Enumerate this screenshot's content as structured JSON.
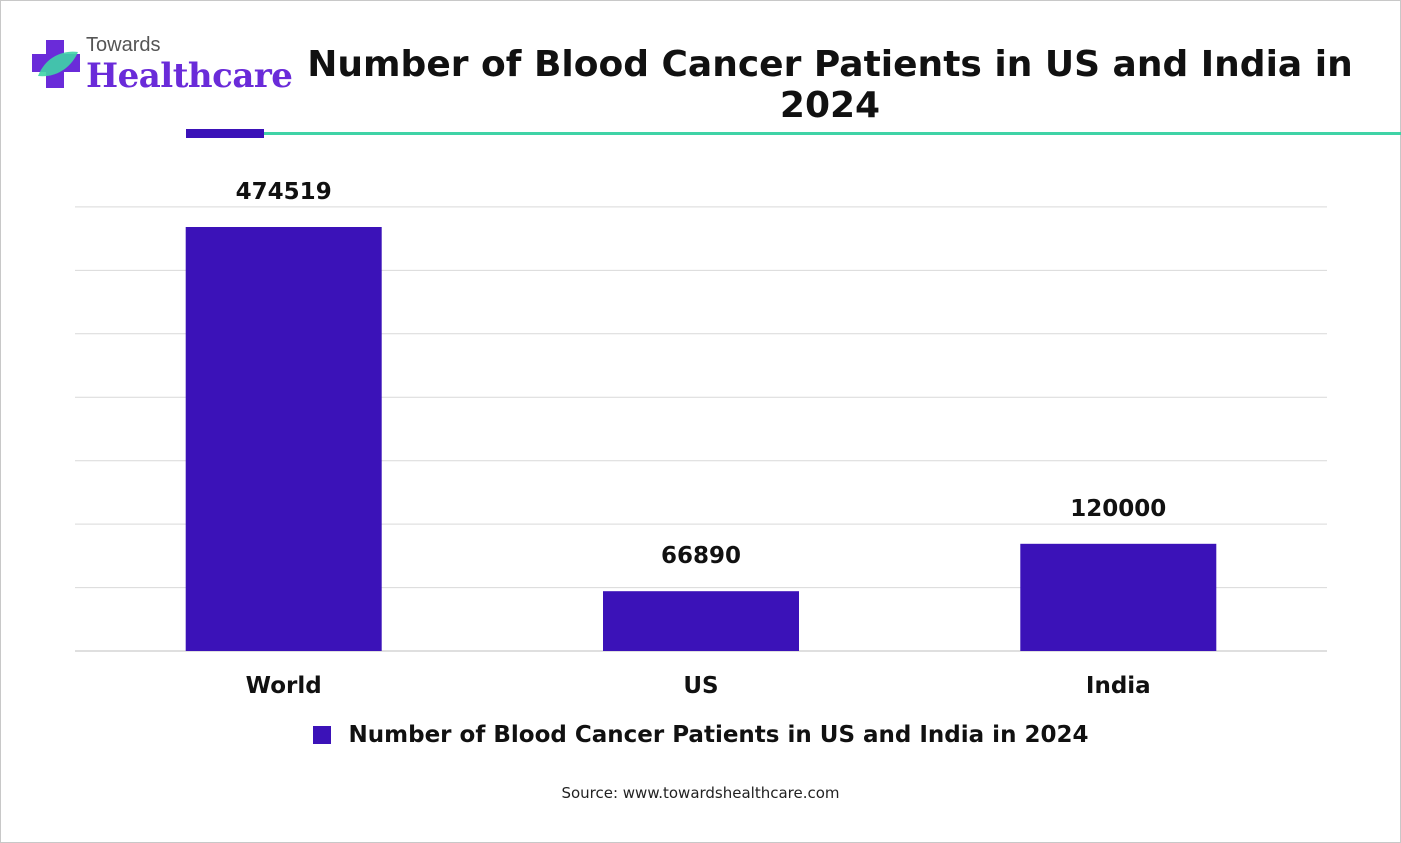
{
  "brand": {
    "small": "Towards",
    "big": "Healthcare"
  },
  "colors": {
    "bar": "#3b12b8",
    "accent_line": "#3fd3a6",
    "grid": "#d9d9d9",
    "logo": "#6a2bd9"
  },
  "chart_data": {
    "type": "bar",
    "title": "Number of Blood Cancer Patients in US and India in 2024",
    "categories": [
      "World",
      "US",
      "India"
    ],
    "series": [
      {
        "name": "Number of Blood Cancer Patients in US and India in 2024",
        "values": [
          474519,
          66890,
          120000
        ]
      }
    ],
    "data_labels": [
      "474519",
      "66890",
      "120000"
    ],
    "ylim": [
      0,
      500000
    ],
    "y_gridline_step": 71000,
    "grid": true,
    "legend_position": "bottom",
    "xlabel": "",
    "ylabel": ""
  },
  "source": "Source: www.towardshealthcare.com"
}
